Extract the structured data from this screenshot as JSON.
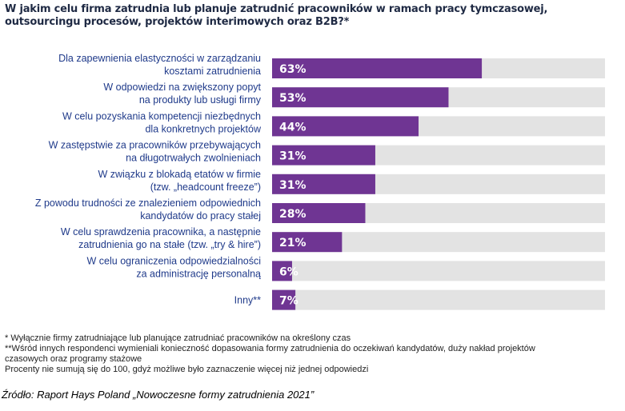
{
  "title": "W jakim celu firma zatrudnia lub planuje zatrudnić pracowników w ramach pracy tymczasowej, outsourcingu procesów, projektów interimowych oraz B2B?*",
  "chart_data": {
    "type": "bar",
    "orientation": "horizontal",
    "categories": [
      [
        "Dla zapewnienia elastyczności w zarządzaniu",
        "kosztami zatrudnienia"
      ],
      [
        "W odpowiedzi na zwiększony popyt",
        "na produkty lub usługi firmy"
      ],
      [
        "W celu pozyskania kompetencji niezbędnych",
        "dla konkretnych projektów"
      ],
      [
        "W zastępstwie za pracowników przebywających",
        "na długotrwałych zwolnieniach"
      ],
      [
        "W związku z blokadą etatów w firmie",
        "(tzw. „headcount freeze”)"
      ],
      [
        "Z powodu trudności ze znalezieniem odpowiednich",
        "kandydatów do pracy stałej"
      ],
      [
        "W celu sprawdzenia pracownika, a następnie",
        "zatrudnienia go na stałe (tzw. „try & hire”)"
      ],
      [
        "W celu ograniczenia odpowiedzialności",
        "za administrację personalną"
      ],
      [
        "Inny**"
      ]
    ],
    "values": [
      63,
      53,
      44,
      31,
      31,
      28,
      21,
      6,
      7
    ],
    "value_labels": [
      "63%",
      "53%",
      "44%",
      "31%",
      "31%",
      "28%",
      "21%",
      "6%",
      "7%"
    ],
    "xlim": [
      0,
      100
    ],
    "colors": {
      "bar": "#6f3593",
      "track": "#e3e3e3",
      "category_text": "#1f3a8a"
    }
  },
  "notes": [
    "* Wyłącznie firmy zatrudniające lub planujące zatrudniać pracowników na określony czas",
    "**Wśród innych respondenci wymieniali konieczność dopasowania formy zatrudnienia do oczekiwań kandydatów, duży nakład projektów\nczasowych oraz programy stażowe",
    "Procenty nie sumują się do 100, gdyż możliwe było zaznaczenie więcej niż jednej odpowiedzi"
  ],
  "source": "Źródło: Raport Hays Poland „Nowoczesne formy zatrudnienia 2021”"
}
